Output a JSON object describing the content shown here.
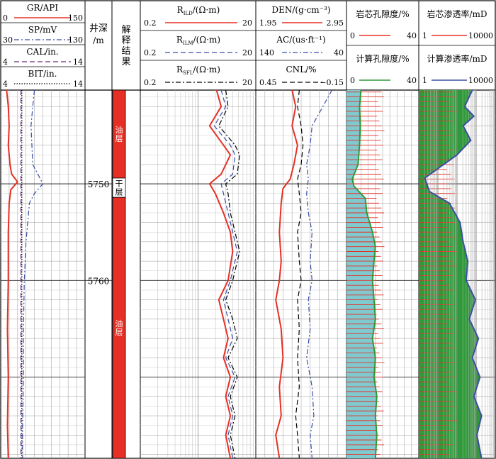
{
  "chart_data": {
    "type": "line",
    "title": "",
    "depth_axis": {
      "header": [
        "井深",
        "/m"
      ],
      "tick_labels": [
        "5750",
        "5760"
      ],
      "ticks": [
        5750,
        5760
      ],
      "range": [
        5740.3,
        5778.4
      ],
      "unit": "m"
    },
    "interpretation": {
      "header": [
        "解",
        "释",
        "结",
        "果"
      ],
      "zones": [
        {
          "label": "油层",
          "from": 5740.3,
          "to": 5749.4,
          "color": "#e63025"
        },
        {
          "label": "干层",
          "from": 5749.4,
          "to": 5751.4,
          "color": "#ffffff"
        },
        {
          "label": "油层",
          "from": 5751.4,
          "to": 5778.4,
          "color": "#e63025"
        }
      ]
    },
    "tracks": [
      {
        "name": "track-lithology",
        "curves": [
          {
            "key": "gr",
            "label": "GR/API",
            "min": "0",
            "max": "150",
            "color": "#e63025",
            "dash": "solid",
            "values": [
              [
                5740.3,
                7
              ],
              [
                5742,
                9
              ],
              [
                5744,
                10
              ],
              [
                5746,
                9
              ],
              [
                5748,
                11
              ],
              [
                5749,
                13
              ],
              [
                5749.8,
                20
              ],
              [
                5750.6,
                12
              ],
              [
                5752,
                10
              ],
              [
                5755,
                9
              ],
              [
                5760,
                9
              ],
              [
                5765,
                8
              ],
              [
                5770,
                9
              ],
              [
                5775,
                8
              ],
              [
                5778.4,
                9
              ]
            ]
          },
          {
            "key": "sp",
            "label": "SP/mV",
            "min": "30",
            "max": "130",
            "color": "#3b4ea3",
            "dash": "dashdot",
            "values": [
              [
                5740.3,
                40
              ],
              [
                5742,
                38
              ],
              [
                5744,
                36
              ],
              [
                5746,
                37
              ],
              [
                5748,
                38
              ],
              [
                5749,
                44
              ],
              [
                5750,
                50
              ],
              [
                5751,
                40
              ],
              [
                5752,
                34
              ],
              [
                5756,
                30
              ],
              [
                5760,
                28
              ],
              [
                5765,
                27
              ],
              [
                5770,
                27
              ],
              [
                5775,
                26
              ],
              [
                5778.4,
                26
              ]
            ]
          },
          {
            "key": "cal",
            "label": "CAL/in.",
            "min": "4",
            "max": "14",
            "color": "#6a2a7a",
            "dash": "dash",
            "values": [
              [
                5740.3,
                24
              ],
              [
                5778.4,
                24
              ]
            ]
          },
          {
            "key": "bit",
            "label": "BIT/in.",
            "min": "4",
            "max": "14",
            "color": "#000000",
            "dash": "dot",
            "values": [
              [
                5740.3,
                25
              ],
              [
                5778.4,
                25
              ]
            ]
          }
        ]
      },
      {
        "name": "track-resistivity",
        "curves": [
          {
            "key": "rild",
            "label": "R",
            "sub": "ILD",
            "unit": "/(Ω·m)",
            "min": "0.2",
            "max": "20",
            "color": "#e63025",
            "dash": "solid",
            "values": [
              [
                5740.3,
                66
              ],
              [
                5742,
                70
              ],
              [
                5744,
                60
              ],
              [
                5746,
                72
              ],
              [
                5747,
                78
              ],
              [
                5749,
                70
              ],
              [
                5750,
                60
              ],
              [
                5751,
                65
              ],
              [
                5753,
                72
              ],
              [
                5755,
                78
              ],
              [
                5757,
                80
              ],
              [
                5760,
                76
              ],
              [
                5762,
                68
              ],
              [
                5764,
                72
              ],
              [
                5766,
                76
              ],
              [
                5768,
                72
              ],
              [
                5770,
                78
              ],
              [
                5772,
                74
              ],
              [
                5774,
                78
              ],
              [
                5776,
                74
              ],
              [
                5778.4,
                78
              ]
            ]
          },
          {
            "key": "rilm",
            "label": "R",
            "sub": "ILM",
            "unit": "/(Ω·m)",
            "min": "0.2",
            "max": "20",
            "color": "#3b4ea3",
            "dash": "dash",
            "values": [
              [
                5740.3,
                70
              ],
              [
                5742,
                74
              ],
              [
                5744,
                64
              ],
              [
                5746,
                78
              ],
              [
                5747,
                82
              ],
              [
                5749,
                80
              ],
              [
                5750,
                70
              ],
              [
                5751,
                72
              ],
              [
                5753,
                76
              ],
              [
                5755,
                80
              ],
              [
                5757,
                84
              ],
              [
                5760,
                78
              ],
              [
                5762,
                72
              ],
              [
                5764,
                76
              ],
              [
                5766,
                80
              ],
              [
                5768,
                74
              ],
              [
                5770,
                82
              ],
              [
                5772,
                76
              ],
              [
                5774,
                80
              ],
              [
                5776,
                76
              ],
              [
                5778.4,
                80
              ]
            ]
          },
          {
            "key": "rsfl",
            "label": "R",
            "sub": "SFL",
            "unit": "/(Ω·m)",
            "min": "0.2",
            "max": "20",
            "color": "#000000",
            "dash": "dashdot",
            "values": [
              [
                5740.3,
                74
              ],
              [
                5742,
                76
              ],
              [
                5744,
                68
              ],
              [
                5746,
                82
              ],
              [
                5747,
                86
              ],
              [
                5749,
                84
              ],
              [
                5750,
                74
              ],
              [
                5751,
                76
              ],
              [
                5753,
                78
              ],
              [
                5755,
                82
              ],
              [
                5757,
                86
              ],
              [
                5760,
                80
              ],
              [
                5762,
                74
              ],
              [
                5764,
                80
              ],
              [
                5766,
                84
              ],
              [
                5768,
                76
              ],
              [
                5770,
                84
              ],
              [
                5772,
                78
              ],
              [
                5774,
                82
              ],
              [
                5776,
                78
              ],
              [
                5778.4,
                82
              ]
            ]
          }
        ]
      },
      {
        "name": "track-porosity",
        "curves": [
          {
            "key": "den",
            "label": "DEN/",
            "unit": "(g·cm⁻³)",
            "min": "1.95",
            "max": "2.95",
            "color": "#e63025",
            "dash": "solid",
            "values": [
              [
                5740.3,
                40
              ],
              [
                5742,
                44
              ],
              [
                5744,
                40
              ],
              [
                5746,
                46
              ],
              [
                5748,
                42
              ],
              [
                5749.5,
                38
              ],
              [
                5750.5,
                30
              ],
              [
                5752,
                28
              ],
              [
                5755,
                26
              ],
              [
                5758,
                28
              ],
              [
                5760,
                26
              ],
              [
                5762,
                22
              ],
              [
                5765,
                28
              ],
              [
                5768,
                30
              ],
              [
                5771,
                26
              ],
              [
                5774,
                28
              ],
              [
                5776,
                22
              ],
              [
                5778.4,
                26
              ]
            ]
          },
          {
            "key": "ac",
            "label": "AC/",
            "unit": "(us·ft⁻¹)",
            "min": "140",
            "max": "40",
            "color": "#3b4ea3",
            "dash": "dashdot",
            "values": [
              [
                5740.3,
                84
              ],
              [
                5742,
                74
              ],
              [
                5744,
                62
              ],
              [
                5746,
                60
              ],
              [
                5748,
                56
              ],
              [
                5749.5,
                58
              ],
              [
                5751,
                56
              ],
              [
                5753,
                58
              ],
              [
                5755,
                62
              ],
              [
                5758,
                60
              ],
              [
                5760,
                62
              ],
              [
                5762,
                58
              ],
              [
                5765,
                60
              ],
              [
                5768,
                56
              ],
              [
                5771,
                62
              ],
              [
                5774,
                64
              ],
              [
                5776,
                60
              ],
              [
                5778.4,
                62
              ]
            ]
          },
          {
            "key": "cnl",
            "label": "CNL/%",
            "min": "0.45",
            "max": "−0.15",
            "color": "#000000",
            "dash": "dash",
            "values": [
              [
                5740.3,
                48
              ],
              [
                5742,
                46
              ],
              [
                5744,
                50
              ],
              [
                5746,
                52
              ],
              [
                5748,
                50
              ],
              [
                5749.5,
                46
              ],
              [
                5751,
                48
              ],
              [
                5753,
                50
              ],
              [
                5755,
                46
              ],
              [
                5758,
                48
              ],
              [
                5760,
                50
              ],
              [
                5762,
                46
              ],
              [
                5765,
                48
              ],
              [
                5768,
                46
              ],
              [
                5771,
                48
              ],
              [
                5774,
                44
              ],
              [
                5776,
                46
              ],
              [
                5778.4,
                48
              ]
            ]
          }
        ]
      },
      {
        "name": "track-core-porosity",
        "curves": [
          {
            "key": "core_por",
            "label": "岩芯孔隙度/%",
            "min": "0",
            "max": "40",
            "color": "#e63025",
            "dash": "solid"
          },
          {
            "key": "calc_por",
            "label": "计算孔隙度/%",
            "min": "0",
            "max": "40",
            "color": "#2f9a3a",
            "dash": "solid",
            "fill": "#80c9cf",
            "values": [
              [
                5740.3,
                20
              ],
              [
                5742,
                18
              ],
              [
                5744,
                19
              ],
              [
                5746,
                18
              ],
              [
                5748,
                16
              ],
              [
                5749.5,
                8
              ],
              [
                5750.2,
                10
              ],
              [
                5751.5,
                26
              ],
              [
                5753,
                28
              ],
              [
                5755,
                36
              ],
              [
                5756.5,
                40
              ],
              [
                5758,
                38
              ],
              [
                5760,
                36
              ],
              [
                5762,
                38
              ],
              [
                5764,
                40
              ],
              [
                5766,
                36
              ],
              [
                5768,
                40
              ],
              [
                5770,
                38
              ],
              [
                5772,
                42
              ],
              [
                5774,
                40
              ],
              [
                5776,
                42
              ],
              [
                5778.4,
                40
              ]
            ]
          }
        ]
      },
      {
        "name": "track-permeability",
        "curves": [
          {
            "key": "core_perm",
            "label": "岩芯渗透率/mD",
            "min": "1",
            "max": "10000",
            "color": "#e63025",
            "dash": "solid"
          },
          {
            "key": "calc_perm",
            "label": "计算渗透率/mD",
            "min": "1",
            "max": "10000",
            "color": "#3b4ea3",
            "dash": "solid",
            "fill": "#2f9a3a",
            "values": [
              [
                5740.3,
                70
              ],
              [
                5742,
                60
              ],
              [
                5743,
                72
              ],
              [
                5744,
                58
              ],
              [
                5745.5,
                68
              ],
              [
                5747,
                50
              ],
              [
                5749.4,
                8
              ],
              [
                5750.8,
                14
              ],
              [
                5752,
                40
              ],
              [
                5754,
                54
              ],
              [
                5756,
                58
              ],
              [
                5758,
                64
              ],
              [
                5760,
                62
              ],
              [
                5762,
                74
              ],
              [
                5764,
                66
              ],
              [
                5766,
                78
              ],
              [
                5768,
                70
              ],
              [
                5770,
                80
              ],
              [
                5772,
                72
              ],
              [
                5774,
                82
              ],
              [
                5776,
                76
              ],
              [
                5778.4,
                82
              ]
            ]
          }
        ]
      }
    ]
  }
}
